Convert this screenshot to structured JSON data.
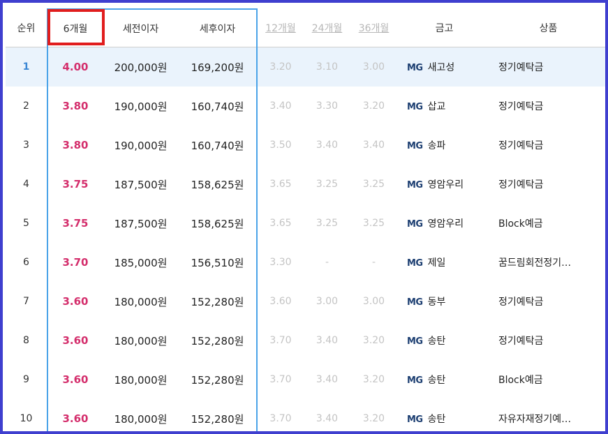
{
  "headers": {
    "rank": "순위",
    "m6": "6개월",
    "pretax": "세전이자",
    "aftertax": "세후이자",
    "m12": "12개월",
    "m24": "24개월",
    "m36": "36개월",
    "bank": "금고",
    "product": "상품"
  },
  "bank_logo_text": "MG",
  "rows": [
    {
      "rank": "1",
      "m6": "4.00",
      "pretax": "200,000원",
      "aftertax": "169,200원",
      "m12": "3.20",
      "m24": "3.10",
      "m36": "3.00",
      "bank": "새고성",
      "product": "정기예탁금"
    },
    {
      "rank": "2",
      "m6": "3.80",
      "pretax": "190,000원",
      "aftertax": "160,740원",
      "m12": "3.40",
      "m24": "3.30",
      "m36": "3.20",
      "bank": "삽교",
      "product": "정기예탁금"
    },
    {
      "rank": "3",
      "m6": "3.80",
      "pretax": "190,000원",
      "aftertax": "160,740원",
      "m12": "3.50",
      "m24": "3.40",
      "m36": "3.40",
      "bank": "송파",
      "product": "정기예탁금"
    },
    {
      "rank": "4",
      "m6": "3.75",
      "pretax": "187,500원",
      "aftertax": "158,625원",
      "m12": "3.65",
      "m24": "3.25",
      "m36": "3.25",
      "bank": "영암우리",
      "product": "정기예탁금"
    },
    {
      "rank": "5",
      "m6": "3.75",
      "pretax": "187,500원",
      "aftertax": "158,625원",
      "m12": "3.65",
      "m24": "3.25",
      "m36": "3.25",
      "bank": "영암우리",
      "product": "Block예금"
    },
    {
      "rank": "6",
      "m6": "3.70",
      "pretax": "185,000원",
      "aftertax": "156,510원",
      "m12": "3.30",
      "m24": "-",
      "m36": "-",
      "bank": "제일",
      "product": "꿈드림회전정기…"
    },
    {
      "rank": "7",
      "m6": "3.60",
      "pretax": "180,000원",
      "aftertax": "152,280원",
      "m12": "3.60",
      "m24": "3.00",
      "m36": "3.00",
      "bank": "동부",
      "product": "정기예탁금"
    },
    {
      "rank": "8",
      "m6": "3.60",
      "pretax": "180,000원",
      "aftertax": "152,280원",
      "m12": "3.70",
      "m24": "3.40",
      "m36": "3.20",
      "bank": "송탄",
      "product": "정기예탁금"
    },
    {
      "rank": "9",
      "m6": "3.60",
      "pretax": "180,000원",
      "aftertax": "152,280원",
      "m12": "3.70",
      "m24": "3.40",
      "m36": "3.20",
      "bank": "송탄",
      "product": "Block예금"
    },
    {
      "rank": "10",
      "m6": "3.60",
      "pretax": "180,000원",
      "aftertax": "152,280원",
      "m12": "3.70",
      "m24": "3.40",
      "m36": "3.20",
      "bank": "송탄",
      "product": "자유자재정기예…"
    }
  ]
}
